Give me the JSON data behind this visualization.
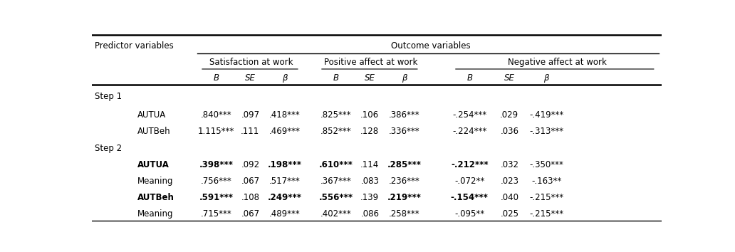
{
  "predictor_label": "Predictor variables",
  "outcome_label": "Outcome variables",
  "group_headers": [
    "Satisfaction at work",
    "Positive affect at work",
    "Negative affect at work"
  ],
  "col_headers": [
    "B",
    "SE",
    "β",
    "B",
    "SE",
    "β",
    "B",
    "SE",
    "β"
  ],
  "rows": [
    {
      "label": "Step 1",
      "indent": false,
      "bold_label": false,
      "data": [
        "",
        "",
        "",
        "",
        "",
        "",
        "",
        "",
        ""
      ],
      "bold_data": [
        false,
        false,
        false,
        false,
        false,
        false,
        false,
        false,
        false
      ]
    },
    {
      "label": "AUTUA",
      "indent": true,
      "bold_label": false,
      "data": [
        ".840***",
        ".097",
        ".418***",
        ".825***",
        ".106",
        ".386***",
        "-.254***",
        ".029",
        "-.419***"
      ],
      "bold_data": [
        false,
        false,
        false,
        false,
        false,
        false,
        false,
        false,
        false
      ]
    },
    {
      "label": "AUTBeh",
      "indent": true,
      "bold_label": false,
      "data": [
        "1.115***",
        ".111",
        ".469***",
        ".852***",
        ".128",
        ".336***",
        "-.224***",
        ".036",
        "-.313***"
      ],
      "bold_data": [
        false,
        false,
        false,
        false,
        false,
        false,
        false,
        false,
        false
      ]
    },
    {
      "label": "Step 2",
      "indent": false,
      "bold_label": false,
      "data": [
        "",
        "",
        "",
        "",
        "",
        "",
        "",
        "",
        ""
      ],
      "bold_data": [
        false,
        false,
        false,
        false,
        false,
        false,
        false,
        false,
        false
      ]
    },
    {
      "label": "AUTUA",
      "indent": true,
      "bold_label": true,
      "data": [
        ".398***",
        ".092",
        ".198***",
        ".610***",
        ".114",
        ".285***",
        "-.212***",
        ".032",
        "-.350***"
      ],
      "bold_data": [
        true,
        false,
        true,
        true,
        false,
        true,
        true,
        false,
        false
      ]
    },
    {
      "label": "Meaning",
      "indent": true,
      "bold_label": false,
      "data": [
        ".756***",
        ".067",
        ".517***",
        ".367***",
        ".083",
        ".236***",
        "-.072**",
        ".023",
        "-.163**"
      ],
      "bold_data": [
        false,
        false,
        false,
        false,
        false,
        false,
        false,
        false,
        false
      ]
    },
    {
      "label": "AUTBeh",
      "indent": true,
      "bold_label": true,
      "data": [
        ".591***",
        ".108",
        ".249***",
        ".556***",
        ".139",
        ".219***",
        "-.154***",
        ".040",
        "-.215***"
      ],
      "bold_data": [
        true,
        false,
        true,
        true,
        false,
        true,
        true,
        false,
        false
      ]
    },
    {
      "label": "Meaning",
      "indent": true,
      "bold_label": false,
      "data": [
        ".715***",
        ".067",
        ".489***",
        ".402***",
        ".086",
        ".258***",
        "-.095**",
        ".025",
        "-.215***"
      ],
      "bold_data": [
        false,
        false,
        false,
        false,
        false,
        false,
        false,
        false,
        false
      ]
    }
  ],
  "background_color": "#ffffff",
  "text_color": "#000000",
  "font_size": 8.5,
  "figsize": [
    10.32,
    3.54
  ]
}
